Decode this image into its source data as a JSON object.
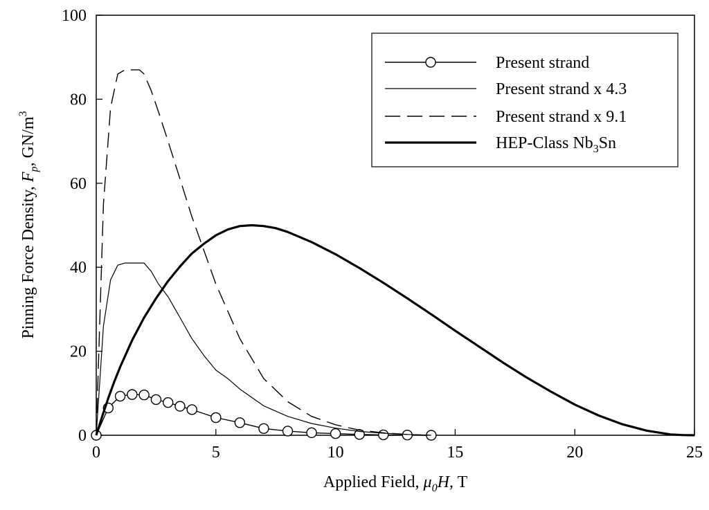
{
  "chart_data": {
    "type": "line",
    "title": "",
    "xlabel": {
      "prefix": "Applied Field, ",
      "italic": "μ",
      "sub": "0",
      "italic2": "H,",
      "suffix": " T"
    },
    "ylabel": {
      "prefix": "Pinning Force Density, ",
      "italic": "F",
      "sub": "p",
      "suffix": ", GN/m",
      "sup": "3"
    },
    "xlim": [
      0,
      25
    ],
    "ylim": [
      0,
      100
    ],
    "xticks": [
      0,
      5,
      10,
      15,
      20,
      25
    ],
    "yticks": [
      0,
      20,
      40,
      60,
      80,
      100
    ],
    "grid": false,
    "legend_position": "top-right",
    "series": [
      {
        "name": "Present strand",
        "style": "markers",
        "x": [
          0,
          0.5,
          1,
          1.5,
          2,
          2.5,
          3,
          3.5,
          4,
          5,
          6,
          7,
          8,
          9,
          10,
          11,
          12,
          13,
          14
        ],
        "y": [
          0,
          6.5,
          9.3,
          9.7,
          9.6,
          8.5,
          7.8,
          6.9,
          6.1,
          4.2,
          3.0,
          1.6,
          1.0,
          0.6,
          0.4,
          0.2,
          0.1,
          0.05,
          0
        ]
      },
      {
        "name": "Present strand x 4.3",
        "style": "thin",
        "x": [
          0,
          0.3,
          0.6,
          0.9,
          1.2,
          1.5,
          1.8,
          2.0,
          2.3,
          2.6,
          3.0,
          3.5,
          4.0,
          4.5,
          5.0,
          5.5,
          6.0,
          7.0,
          8.0,
          9.0,
          10.0,
          11.0,
          12.0,
          13.0,
          14.0
        ],
        "y": [
          0,
          26,
          37,
          40.5,
          41,
          41,
          41,
          41,
          39,
          36,
          33,
          28,
          23,
          19,
          15.5,
          13.5,
          11,
          7,
          4.5,
          2.8,
          1.7,
          0.9,
          0.5,
          0.2,
          0
        ]
      },
      {
        "name": "Present strand x 9.1",
        "style": "dashed",
        "x": [
          0,
          0.3,
          0.6,
          0.9,
          1.2,
          1.5,
          1.8,
          2.0,
          2.3,
          2.6,
          3.0,
          3.5,
          4.0,
          4.5,
          5.0,
          5.5,
          6.0,
          7.0,
          8.0,
          9.0,
          10.0,
          11.0,
          12.0,
          13.0,
          14.0
        ],
        "y": [
          0,
          55,
          78,
          86,
          87,
          87,
          87,
          86,
          82,
          77,
          70,
          61,
          52,
          44,
          36,
          29.5,
          23,
          13.5,
          8,
          4.5,
          2.5,
          1.2,
          0.6,
          0.2,
          0
        ]
      },
      {
        "name": "HEP-Class Nb",
        "name_sub": "3",
        "name_suffix": "Sn",
        "style": "thick",
        "x": [
          0,
          0.25,
          0.5,
          0.75,
          1,
          1.5,
          2,
          2.5,
          3,
          3.5,
          4,
          4.5,
          5,
          5.5,
          6,
          6.5,
          7,
          7.5,
          8,
          9,
          10,
          11,
          12,
          13,
          14,
          15,
          16,
          17,
          18,
          19,
          20,
          21,
          22,
          23,
          24,
          24.5,
          25
        ],
        "y": [
          0,
          4.5,
          8.8,
          12.7,
          16.3,
          22.6,
          28.0,
          32.6,
          36.7,
          40.2,
          43.3,
          45.6,
          47.6,
          49.0,
          49.8,
          50.0,
          49.8,
          49.3,
          48.4,
          46.0,
          43.1,
          39.8,
          36.3,
          32.6,
          28.8,
          24.9,
          21.1,
          17.3,
          13.7,
          10.4,
          7.3,
          4.7,
          2.6,
          1.1,
          0.2,
          0.05,
          0
        ]
      }
    ]
  }
}
